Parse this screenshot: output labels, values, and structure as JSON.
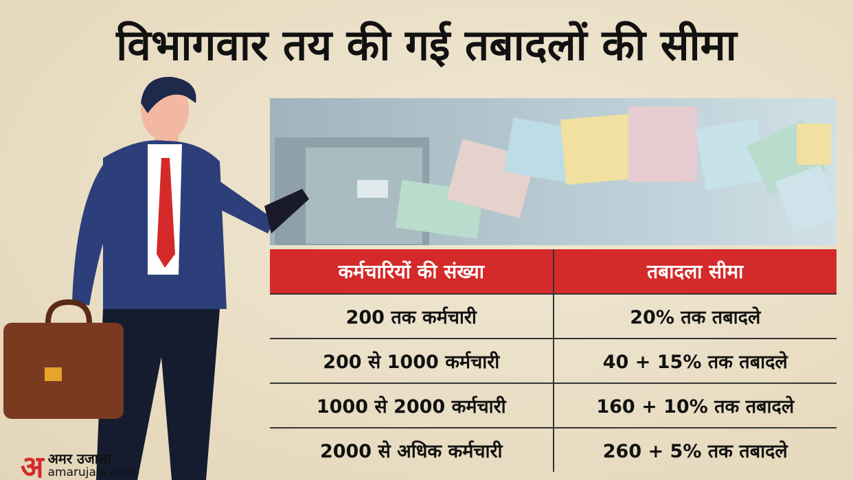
{
  "title": "विभागवार तय की गई तबादलों की सीमा",
  "table": {
    "header": [
      "कर्मचारियों की संख्या",
      "तबादला सीमा"
    ],
    "rows": [
      [
        "200 तक कर्मचारी",
        "20% तक तबादले"
      ],
      [
        "200 से 1000 कर्मचारी",
        "40 + 15% तक तबादले"
      ],
      [
        "1000 से 2000 कर्मचारी",
        "160 + 10% तक तबादले"
      ],
      [
        "2000 से अधिक कर्मचारी",
        "260 + 5% तक तबादले"
      ]
    ]
  },
  "logo": {
    "mark": "अ",
    "name": "अमर उजाला",
    "url": "amarujala.com"
  }
}
